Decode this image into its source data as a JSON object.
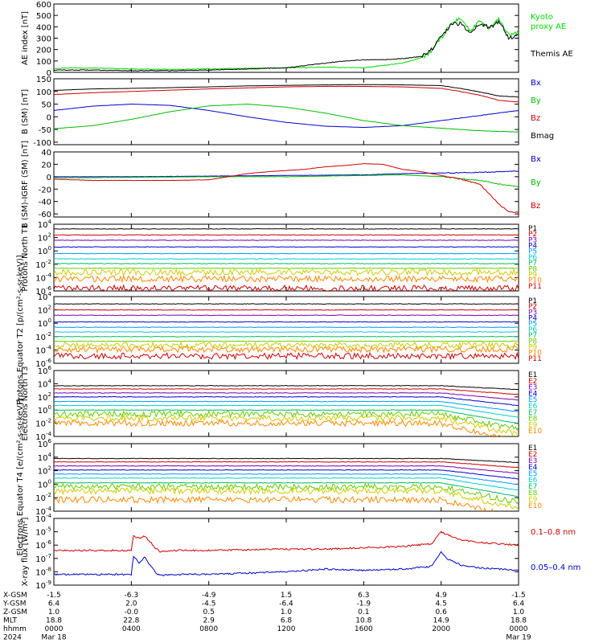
{
  "chart_data": {
    "type": "line",
    "x_ticks": [
      "0000",
      "0400",
      "0800",
      "1200",
      "1600",
      "2000",
      "0000"
    ],
    "dates": {
      "start": "Mar 18",
      "end": "Mar 19"
    },
    "year": "2024",
    "ephemeris": {
      "labels": [
        "X-GSM",
        "Y-GSM",
        "Z-GSM",
        "MLT",
        "hhmm",
        "2024"
      ],
      "rows": [
        [
          "-1.5",
          "-6.3",
          "-4.9",
          "1.5",
          "6.3",
          "4.9",
          "-1.5"
        ],
        [
          "6.4",
          "2.0",
          "-4.5",
          "-6.4",
          "-1.9",
          "4.5",
          "6.4"
        ],
        [
          "1.0",
          "-0.0",
          "0.5",
          "1.0",
          "0.1",
          "0.6",
          "1.0"
        ],
        [
          "18.8",
          "22.8",
          "2.9",
          "6.8",
          "10.8",
          "14.9",
          "18.8"
        ],
        [
          "0000",
          "0400",
          "0800",
          "1200",
          "1600",
          "2000",
          "0000"
        ],
        [
          "Mar 18",
          "",
          "",
          "",
          "",
          "",
          "Mar 19"
        ]
      ]
    },
    "panels": [
      {
        "id": "ae",
        "ylabel": "AE index [nT]",
        "yticks": [
          "600",
          "500",
          "400",
          "300",
          "200",
          "100",
          "0"
        ],
        "ylim": [
          0,
          600
        ],
        "series": [
          {
            "name": "Kyoto proxy AE",
            "color": "#00dd00",
            "x": [
              0,
              1,
              2,
              4,
              6,
              8,
              10,
              12,
              14,
              16,
              17,
              18,
              19,
              19.5,
              20,
              20.5,
              21,
              21.5,
              22,
              22.5,
              23,
              23.5,
              24
            ],
            "y": [
              35,
              40,
              38,
              30,
              25,
              30,
              35,
              40,
              45,
              40,
              60,
              80,
              130,
              180,
              300,
              420,
              480,
              360,
              450,
              380,
              470,
              320,
              350
            ]
          },
          {
            "name": "Themis AE",
            "color": "#000000",
            "x": [
              0,
              2,
              4,
              6,
              8,
              10,
              12,
              13,
              14,
              15,
              16,
              17,
              18,
              19,
              19.5,
              20,
              20.5,
              21,
              21.5,
              22,
              22.5,
              23,
              23.5,
              24
            ],
            "y": [
              20,
              20,
              15,
              15,
              20,
              30,
              40,
              60,
              80,
              100,
              110,
              110,
              120,
              140,
              200,
              310,
              420,
              430,
              350,
              430,
              390,
              450,
              300,
              330
            ]
          }
        ]
      },
      {
        "id": "b_sm",
        "ylabel": "B (SM) [nT]",
        "yticks": [
          "150",
          "100",
          "50",
          "0",
          "-50",
          "-100"
        ],
        "ylim": [
          -110,
          150
        ],
        "series": [
          {
            "name": "Bx",
            "color": "#0000cc",
            "x": [
              0,
              2,
              4,
              6,
              8,
              10,
              12,
              14,
              16,
              18,
              20,
              22,
              24
            ],
            "y": [
              25,
              42,
              50,
              45,
              25,
              0,
              -22,
              -37,
              -42,
              -35,
              -15,
              5,
              25
            ]
          },
          {
            "name": "By",
            "color": "#00bb00",
            "x": [
              0,
              2,
              4,
              6,
              8,
              10,
              12,
              14,
              16,
              18,
              20,
              22,
              24
            ],
            "y": [
              -47,
              -35,
              -10,
              20,
              43,
              50,
              38,
              15,
              -15,
              -35,
              -45,
              -55,
              -60
            ]
          },
          {
            "name": "Bz",
            "color": "#cc0000",
            "x": [
              0,
              2,
              4,
              6,
              8,
              10,
              12,
              14,
              16,
              18,
              20,
              21,
              22,
              23,
              24
            ],
            "y": [
              88,
              95,
              100,
              105,
              110,
              114,
              118,
              120,
              120,
              118,
              112,
              100,
              85,
              65,
              58
            ]
          },
          {
            "name": "Bmag",
            "color": "#000000",
            "x": [
              0,
              2,
              4,
              6,
              8,
              10,
              12,
              14,
              16,
              18,
              20,
              21,
              22,
              23,
              24
            ],
            "y": [
              104,
              110,
              112,
              115,
              118,
              122,
              124,
              126,
              127,
              126,
              123,
              112,
              98,
              82,
              78
            ]
          }
        ]
      },
      {
        "id": "b_minus_igrf",
        "ylabel": "B (SM)-IGRF (SM) [nT]",
        "yticks": [
          "40",
          "20",
          "0",
          "-20",
          "-40",
          "-60"
        ],
        "ylim": [
          -65,
          40
        ],
        "series": [
          {
            "name": "Bx",
            "color": "#0000cc",
            "x": [
              0,
              4,
              8,
              12,
              16,
              18,
              20,
              22,
              24
            ],
            "y": [
              0,
              0,
              1,
              2,
              3,
              5,
              6,
              7,
              9
            ]
          },
          {
            "name": "By",
            "color": "#00bb00",
            "x": [
              0,
              4,
              8,
              12,
              16,
              18,
              20,
              22,
              23,
              24
            ],
            "y": [
              -2,
              -1,
              0,
              0,
              2,
              3,
              0,
              -6,
              -12,
              -16
            ]
          },
          {
            "name": "Bz",
            "color": "#cc0000",
            "x": [
              0,
              2,
              4,
              6,
              8,
              9,
              10,
              11,
              12,
              13,
              14,
              15,
              16,
              17,
              18,
              19,
              20,
              21,
              22,
              22.5,
              23,
              23.5,
              24
            ],
            "y": [
              -4,
              -6,
              -6,
              -6,
              -5,
              0,
              5,
              8,
              10,
              12,
              16,
              18,
              21,
              20,
              12,
              8,
              2,
              -4,
              -12,
              -28,
              -45,
              -56,
              -58
            ]
          }
        ]
      },
      {
        "id": "protons_t1",
        "ylabel": "Protons North T1",
        "ylog": true,
        "yticks": [
          "10^4",
          "10^2",
          "10^0",
          "10^-2",
          "10^-4",
          "10^-6"
        ],
        "ylim_exp": [
          -6,
          4
        ],
        "channels": [
          "P1",
          "P2",
          "P3",
          "P4",
          "P5",
          "P6",
          "P7",
          "P8",
          "P9",
          "P10",
          "P11"
        ],
        "levels_exp": [
          3.3,
          2.4,
          1.6,
          0.6,
          -0.4,
          -1.2,
          -1.9,
          -2.6,
          -3.2,
          -4.2,
          -5.6
        ]
      },
      {
        "id": "protons_t2",
        "ylabel": "Protons Equator T2 [p/(cm²-s-sr-keV)]",
        "ylog": true,
        "yticks": [
          "10^4",
          "10^2",
          "10^0",
          "10^-2",
          "10^-4",
          "10^-6"
        ],
        "ylim_exp": [
          -6,
          4
        ],
        "channels": [
          "P1",
          "P2",
          "P3",
          "P4",
          "P5",
          "P6",
          "P7",
          "P8",
          "P9",
          "P10",
          "P11"
        ],
        "levels_exp": [
          2.9,
          2.0,
          1.2,
          0.2,
          -0.6,
          -1.3,
          -2.0,
          -2.7,
          -3.3,
          -3.9,
          -4.9
        ]
      },
      {
        "id": "electrons_t3",
        "ylabel": "Electrons North T3",
        "ylog": true,
        "yticks": [
          "10^6",
          "10^4",
          "10^2",
          "10^0",
          "10^-2",
          "10^-4"
        ],
        "ylim_exp": [
          -4,
          6
        ],
        "channels": [
          "E1",
          "E2",
          "E3",
          "E4",
          "E5",
          "E6",
          "E7",
          "E8",
          "E9",
          "E10"
        ],
        "levels_exp": [
          3.7,
          3.2,
          2.6,
          2.0,
          1.3,
          0.7,
          0.0,
          -0.6,
          -1.2,
          -2.0
        ]
      },
      {
        "id": "electrons_t4",
        "ylabel": "Electrons Equator T4 [e/(cm²-s-sr-keV)]",
        "ylog": true,
        "yticks": [
          "10^6",
          "10^4",
          "10^2",
          "10^0",
          "10^-2",
          "10^-4"
        ],
        "ylim_exp": [
          -4,
          6
        ],
        "channels": [
          "E1",
          "E2",
          "E3",
          "E4",
          "E5",
          "E6",
          "E7",
          "E8",
          "E9",
          "E10"
        ],
        "levels_exp": [
          3.8,
          3.3,
          2.7,
          2.1,
          1.5,
          0.9,
          0.2,
          -0.4,
          -1.0,
          -2.3
        ]
      },
      {
        "id": "xray",
        "ylabel": "X-ray flux [W/m²]",
        "ylog": true,
        "yticks": [
          "10^-4",
          "10^-5",
          "10^-6",
          "10^-7",
          "10^-8",
          "10^-9"
        ],
        "ylim_exp": [
          -9,
          -4
        ],
        "series": [
          {
            "name": "0.1–0.8 nm",
            "color": "#cc0000",
            "x": [
              0,
              3,
              4,
              4.1,
              4.4,
              4.7,
              5.0,
              5.3,
              5.5,
              6.0,
              6.3,
              8,
              10,
              12,
              14,
              16,
              18,
              19.5,
              20,
              20.3,
              21,
              22,
              23,
              24
            ],
            "y_exp": [
              -6.4,
              -6.4,
              -6.4,
              -5.3,
              -5.5,
              -5.3,
              -5.8,
              -6.3,
              -6.5,
              -6.4,
              -6.4,
              -6.4,
              -6.35,
              -6.3,
              -6.3,
              -6.2,
              -6.1,
              -5.9,
              -5.0,
              -5.2,
              -5.6,
              -5.8,
              -5.9,
              -6.0
            ]
          },
          {
            "name": "0.05–0.4 nm",
            "color": "#0000cc",
            "x": [
              0,
              3,
              4,
              4.1,
              4.4,
              4.7,
              5.0,
              5.3,
              5.5,
              6.0,
              6.3,
              8,
              10,
              12,
              14,
              16,
              18,
              19.5,
              20,
              20.3,
              21,
              22,
              23,
              24
            ],
            "y_exp": [
              -8.2,
              -8.2,
              -8.2,
              -6.8,
              -7.3,
              -6.9,
              -7.6,
              -8.1,
              -8.3,
              -8.2,
              -8.2,
              -8.2,
              -8.1,
              -8.0,
              -7.8,
              -7.9,
              -7.8,
              -7.6,
              -6.5,
              -7.0,
              -7.5,
              -7.7,
              -7.8,
              -7.9
            ]
          }
        ]
      }
    ]
  },
  "colors": {
    "channel_palette": [
      "#000000",
      "#cc0000",
      "#7700aa",
      "#0000cc",
      "#0099ff",
      "#00cccc",
      "#00bb66",
      "#66cc00",
      "#cccc00",
      "#ff8800",
      "#cc0000"
    ]
  }
}
